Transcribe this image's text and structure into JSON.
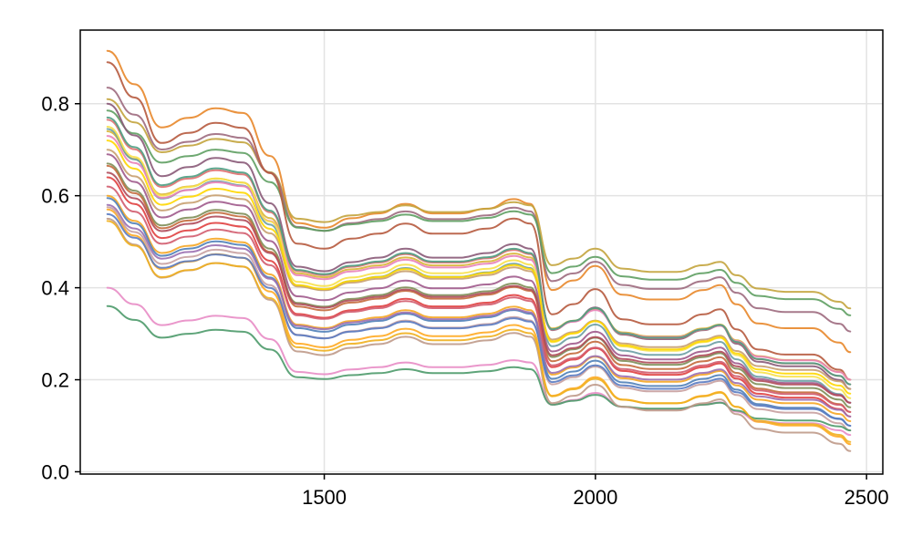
{
  "chart_data": {
    "type": "line",
    "title": "",
    "xlabel": "",
    "ylabel": "",
    "xlim": [
      1050,
      2530
    ],
    "ylim": [
      -0.005,
      0.96
    ],
    "grid": true,
    "x_ticks": [
      1500,
      2000,
      2500
    ],
    "y_ticks": [
      0.0,
      0.2,
      0.4,
      0.6,
      0.8
    ],
    "x_tick_labels": [
      "1500",
      "2000",
      "2500"
    ],
    "y_tick_labels": [
      "0.0",
      "0.2",
      "0.4",
      "0.6",
      "0.8"
    ],
    "x": [
      1100,
      1150,
      1200,
      1250,
      1300,
      1350,
      1400,
      1450,
      1500,
      1550,
      1600,
      1650,
      1700,
      1750,
      1800,
      1850,
      1880,
      1920,
      1960,
      2000,
      2050,
      2100,
      2150,
      2200,
      2230,
      2260,
      2300,
      2350,
      2400,
      2450,
      2470
    ],
    "profile": [
      1.0,
      0.93,
      0.84,
      0.86,
      0.88,
      0.87,
      0.78,
      0.64,
      0.63,
      0.65,
      0.66,
      0.68,
      0.66,
      0.66,
      0.67,
      0.69,
      0.68,
      0.5,
      0.52,
      0.55,
      0.49,
      0.48,
      0.48,
      0.5,
      0.51,
      0.47,
      0.43,
      0.42,
      0.42,
      0.39,
      0.37
    ],
    "series": [
      {
        "color": "#e8872a",
        "start": 0.915,
        "end": 0.26
      },
      {
        "color": "#c3a43d",
        "start": 0.81,
        "end": 0.355
      },
      {
        "color": "#9d6a7e",
        "start": 0.835,
        "end": 0.305
      },
      {
        "color": "#5e9e62",
        "start": 0.785,
        "end": 0.34
      },
      {
        "color": "#b65a3e",
        "start": 0.89,
        "end": 0.2
      },
      {
        "color": "#8a5a78",
        "start": 0.8,
        "end": 0.18
      },
      {
        "color": "#e07070",
        "start": 0.765,
        "end": 0.19
      },
      {
        "color": "#d9b536",
        "start": 0.74,
        "end": 0.2
      },
      {
        "color": "#6c9fa4",
        "start": 0.745,
        "end": 0.15
      },
      {
        "color": "#e982b8",
        "start": 0.73,
        "end": 0.2
      },
      {
        "color": "#4d9d82",
        "start": 0.77,
        "end": 0.19
      },
      {
        "color": "#f7e14a",
        "start": 0.75,
        "end": 0.16
      },
      {
        "color": "#c8a070",
        "start": 0.7,
        "end": 0.18
      },
      {
        "color": "#a05a8c",
        "start": 0.69,
        "end": 0.15
      },
      {
        "color": "#ffd700",
        "start": 0.72,
        "end": 0.17
      },
      {
        "color": "#7e8e58",
        "start": 0.67,
        "end": 0.14
      },
      {
        "color": "#c46a3c",
        "start": 0.665,
        "end": 0.13
      },
      {
        "color": "#b04b5a",
        "start": 0.65,
        "end": 0.15
      },
      {
        "color": "#e04040",
        "start": 0.64,
        "end": 0.12
      },
      {
        "color": "#d25c6e",
        "start": 0.62,
        "end": 0.13
      },
      {
        "color": "#f5a623",
        "start": 0.6,
        "end": 0.11
      },
      {
        "color": "#4f7fb8",
        "start": 0.595,
        "end": 0.1
      },
      {
        "color": "#9b6fb0",
        "start": 0.58,
        "end": 0.12
      },
      {
        "color": "#ffaa22",
        "start": 0.57,
        "end": 0.06
      },
      {
        "color": "#c8a0a0",
        "start": 0.575,
        "end": 0.09
      },
      {
        "color": "#5a7bc2",
        "start": 0.56,
        "end": 0.1
      },
      {
        "color": "#e88cc5",
        "start": 0.4,
        "end": 0.08
      },
      {
        "color": "#4d9a6a",
        "start": 0.36,
        "end": 0.09
      },
      {
        "color": "#bf9a8a",
        "start": 0.55,
        "end": 0.045
      },
      {
        "color": "#f0b020",
        "start": 0.545,
        "end": 0.065
      }
    ]
  }
}
